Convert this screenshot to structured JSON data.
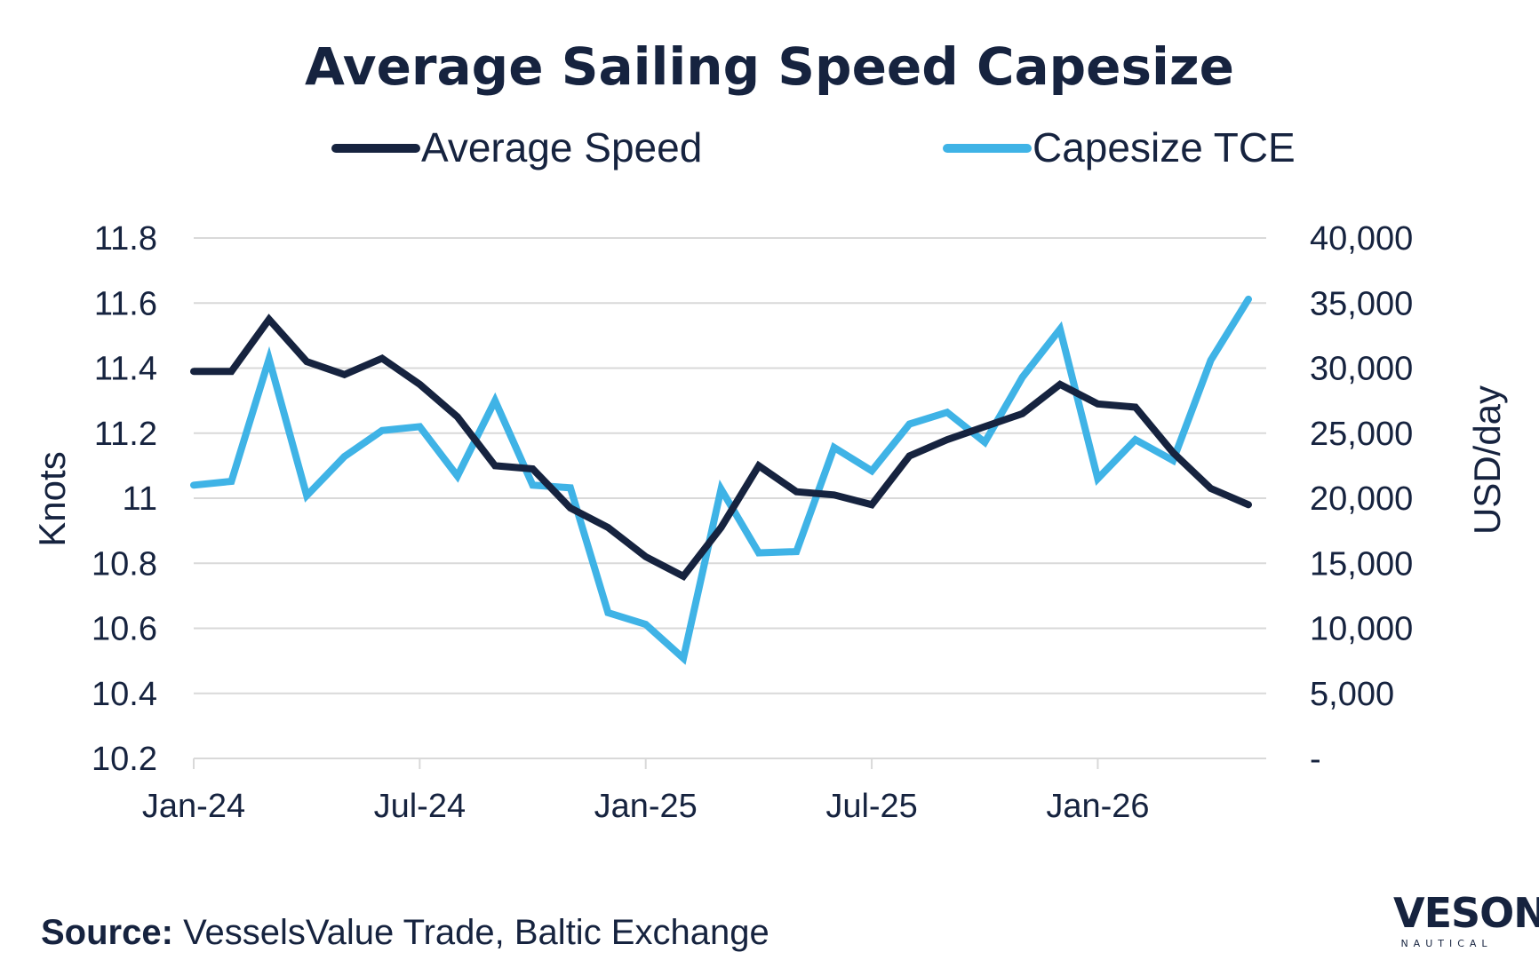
{
  "chart_data": {
    "type": "line",
    "title": "Average Sailing Speed Capesize",
    "xlabel": "",
    "ylabel": "Knots",
    "y2label": "USD/day",
    "ylim": [
      10.2,
      11.8
    ],
    "y2lim": [
      0,
      40000
    ],
    "yticks": [
      "11.8",
      "11.6",
      "11.4",
      "11.2",
      "11",
      "10.8",
      "10.6",
      "10.4",
      "10.2"
    ],
    "y2ticks": [
      "40,000",
      "35,000",
      "30,000",
      "25,000",
      "20,000",
      "15,000",
      "10,000",
      "5,000",
      "-"
    ],
    "xticks": [
      "Jan-24",
      "Jul-24",
      "Jan-25",
      "Jul-25",
      "Jan-26"
    ],
    "grid": true,
    "legend_position": "top",
    "x": [
      "2024-01",
      "2024-02",
      "2024-03",
      "2024-04",
      "2024-05",
      "2024-06",
      "2024-07",
      "2024-08",
      "2024-09",
      "2024-10",
      "2024-11",
      "2024-12",
      "2025-01",
      "2025-02",
      "2025-03",
      "2025-04",
      "2025-05",
      "2025-06",
      "2025-07",
      "2025-08",
      "2025-09",
      "2025-10",
      "2025-11",
      "2025-12",
      "2026-01",
      "2026-02",
      "2026-03",
      "2026-04",
      "2026-05"
    ],
    "series": [
      {
        "name": "Average Speed",
        "axis": "left",
        "color": "#16233f",
        "values": [
          11.39,
          11.39,
          11.55,
          11.42,
          11.38,
          11.43,
          11.35,
          11.25,
          11.1,
          11.09,
          10.97,
          10.91,
          10.82,
          10.76,
          10.91,
          11.1,
          11.02,
          11.01,
          10.98,
          11.13,
          11.18,
          11.22,
          11.26,
          11.35,
          11.29,
          11.28,
          11.14,
          11.03,
          10.98
        ]
      },
      {
        "name": "Capesize TCE",
        "axis": "right",
        "color": "#3fb3e6",
        "values": [
          21000,
          21300,
          30700,
          20200,
          23200,
          25200,
          25500,
          21700,
          27500,
          21000,
          20800,
          11200,
          10300,
          7700,
          20700,
          15800,
          15900,
          23900,
          22100,
          25700,
          26600,
          24300,
          29300,
          33000,
          21500,
          24500,
          22900,
          30600,
          35300
        ]
      }
    ]
  },
  "source": {
    "label": "Source:",
    "text": "VesselsValue Trade, Baltic Exchange"
  },
  "logo": {
    "word": "VESON",
    "sub": "NAUTICAL"
  }
}
